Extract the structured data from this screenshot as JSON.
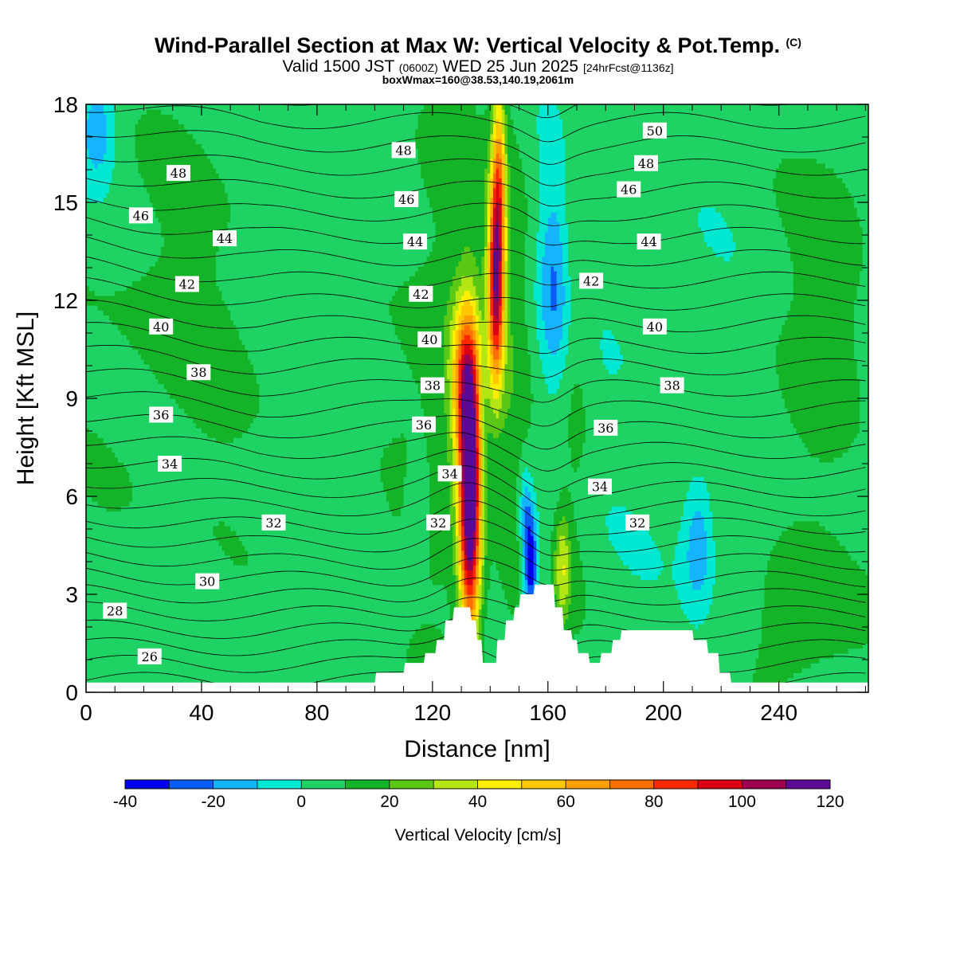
{
  "header": {
    "title": "Wind-Parallel Section at Max W: Vertical Velocity & Pot.Temp.",
    "title_mark": "(C)",
    "valid_a": "Valid 1500 JST",
    "valid_zone": "(0600Z)",
    "valid_b": "WED 25 Jun 2025",
    "forecast": "[24hrFcst@1136z]",
    "box_info": "boxWmax=160@38.53,140.19,2061m"
  },
  "chart_data": {
    "type": "heatmap",
    "title": "Wind-Parallel Section at Max W: Vertical Velocity & Pot.Temp. (C)",
    "xlabel": "Distance [nm]",
    "ylabel": "Height [Kft MSL]",
    "xlim": [
      0,
      271
    ],
    "ylim": [
      0,
      18
    ],
    "x_ticks": [
      0,
      40,
      80,
      120,
      160,
      200,
      240
    ],
    "y_ticks": [
      0,
      3,
      6,
      9,
      12,
      15,
      18
    ],
    "colorbar": {
      "label": "Vertical Velocity [cm/s]",
      "levels": [
        -40,
        -30,
        -20,
        -10,
        0,
        10,
        20,
        30,
        40,
        50,
        60,
        70,
        80,
        90,
        100,
        110,
        120
      ],
      "tick_labels": [
        -40,
        -20,
        0,
        20,
        40,
        60,
        80,
        100,
        120
      ],
      "colors": [
        "#0000ee",
        "#0a5cf5",
        "#14b4ff",
        "#00e8d2",
        "#1ed264",
        "#14b428",
        "#5ac814",
        "#b4e614",
        "#ffee00",
        "#ffc800",
        "#ffa000",
        "#ff6e00",
        "#ff2800",
        "#dc0014",
        "#9c0050",
        "#5a0a96"
      ]
    },
    "series": [
      {
        "name": "Vertical Velocity",
        "unit": "cm/s",
        "features": [
          {
            "x": 133,
            "y": 6.0,
            "max_value": 120
          },
          {
            "x": 142,
            "y": 12.5,
            "max_value": 90
          },
          {
            "x": 154,
            "y": 4.0,
            "min_value": -40
          },
          {
            "x": 162,
            "y": 12.5,
            "min_value": -20
          },
          {
            "x": 212,
            "y": 4.5,
            "min_value": -20
          }
        ]
      },
      {
        "name": "Potential Temperature",
        "unit": "C",
        "contour_labels": [
          26,
          28,
          30,
          32,
          34,
          36,
          38,
          40,
          42,
          44,
          46,
          48,
          50
        ]
      }
    ],
    "terrain_kft": [
      [
        0,
        0.3
      ],
      [
        100,
        0.3
      ],
      [
        100.5,
        0.6
      ],
      [
        110,
        0.6
      ],
      [
        110.5,
        0.9
      ],
      [
        117,
        0.9
      ],
      [
        117.5,
        1.2
      ],
      [
        121,
        1.2
      ],
      [
        121.5,
        1.6
      ],
      [
        124,
        1.6
      ],
      [
        124.5,
        2.2
      ],
      [
        127,
        2.2
      ],
      [
        127.5,
        2.6
      ],
      [
        133,
        2.6
      ],
      [
        133.5,
        2.2
      ],
      [
        135,
        2.2
      ],
      [
        135.5,
        1.6
      ],
      [
        137,
        1.6
      ],
      [
        137.5,
        0.9
      ],
      [
        142,
        0.9
      ],
      [
        142.5,
        1.6
      ],
      [
        145,
        1.6
      ],
      [
        145.5,
        2.2
      ],
      [
        148,
        2.2
      ],
      [
        148.5,
        2.6
      ],
      [
        150,
        2.6
      ],
      [
        150.5,
        3.0
      ],
      [
        155,
        3.0
      ],
      [
        155.5,
        3.3
      ],
      [
        162,
        3.3
      ],
      [
        162.5,
        2.6
      ],
      [
        165,
        2.6
      ],
      [
        165.5,
        1.9
      ],
      [
        168,
        1.9
      ],
      [
        168.5,
        1.6
      ],
      [
        170,
        1.6
      ],
      [
        170.5,
        1.2
      ],
      [
        174,
        1.2
      ],
      [
        174.5,
        0.9
      ],
      [
        178,
        0.9
      ],
      [
        178.5,
        1.2
      ],
      [
        182,
        1.2
      ],
      [
        182.5,
        1.6
      ],
      [
        185,
        1.6
      ],
      [
        185.5,
        1.9
      ],
      [
        210,
        1.9
      ],
      [
        210.5,
        1.6
      ],
      [
        215,
        1.6
      ],
      [
        215.5,
        1.2
      ],
      [
        219,
        1.2
      ],
      [
        219.5,
        0.6
      ],
      [
        223,
        0.6
      ],
      [
        223.5,
        0.3
      ],
      [
        271,
        0.3
      ]
    ]
  }
}
